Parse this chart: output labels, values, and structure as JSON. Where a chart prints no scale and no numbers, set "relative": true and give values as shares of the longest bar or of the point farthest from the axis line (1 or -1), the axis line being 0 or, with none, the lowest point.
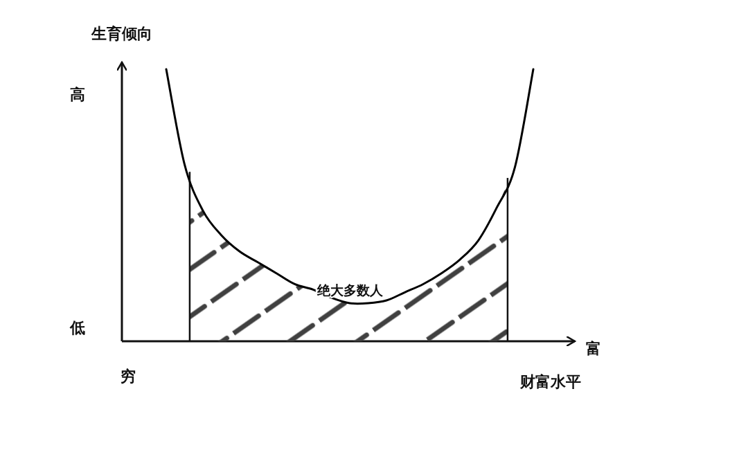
{
  "chart_data": {
    "type": "line",
    "relative": true,
    "ylabel": "生育倾向",
    "xlabel": "财富水平",
    "categories": [
      null,
      null,
      null,
      null,
      null,
      null,
      null,
      null,
      null,
      null,
      null,
      null,
      null,
      null,
      null,
      null,
      null,
      null,
      null,
      null,
      null
    ],
    "series": [
      {
        "color": "#000000",
        "values": [
          1,
          0.65,
          0.48,
          0.39,
          0.33,
          0.29,
          0.25,
          0.21,
          0.19,
          0.16,
          0.14,
          0.14,
          0.15,
          0.18,
          0.21,
          0.25,
          0.3,
          0.37,
          0.49,
          0.64,
          1
        ]
      }
    ],
    "annotations": [
      "高",
      "低",
      "穷",
      "富",
      "绝大多数人"
    ],
    "grid": false,
    "marker": "none",
    "line_style": "solid"
  }
}
